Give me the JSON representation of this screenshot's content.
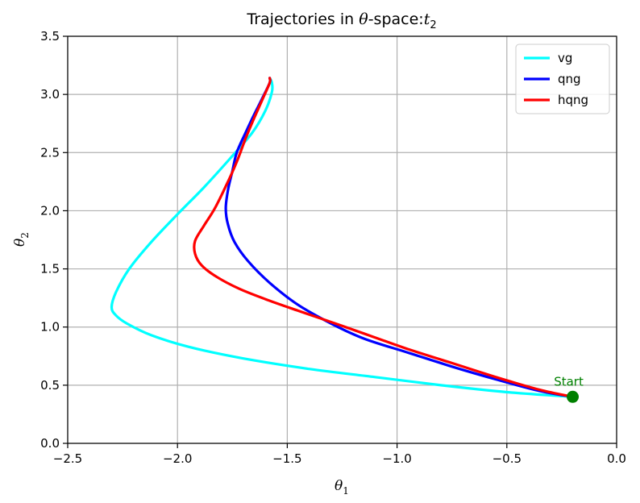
{
  "chart_data": {
    "type": "line",
    "title_prefix": "Trajectories in ",
    "title_theta": "θ",
    "title_middle": "-space:",
    "title_t": "t",
    "title_sub": "2",
    "xlabel_symbol": "θ",
    "xlabel_sub": "1",
    "ylabel_symbol": "θ",
    "ylabel_sub": "2",
    "xlim": [
      -2.5,
      0.0
    ],
    "ylim": [
      0.0,
      3.5
    ],
    "xticks": [
      -2.5,
      -2.0,
      -1.5,
      -1.0,
      -0.5,
      0.0
    ],
    "yticks": [
      0.0,
      0.5,
      1.0,
      1.5,
      2.0,
      2.5,
      3.0,
      3.5
    ],
    "xtick_labels": [
      "−2.5",
      "−2.0",
      "−1.5",
      "−1.0",
      "−0.5",
      "0.0"
    ],
    "ytick_labels": [
      "0.0",
      "0.5",
      "1.0",
      "1.5",
      "2.0",
      "2.5",
      "3.0",
      "3.5"
    ],
    "grid": true,
    "legend_position": "top-right",
    "series": [
      {
        "name": "vg",
        "color": "#00ffff",
        "points": [
          [
            -0.2,
            0.4
          ],
          [
            -0.5,
            0.44
          ],
          [
            -0.8,
            0.5
          ],
          [
            -1.1,
            0.57
          ],
          [
            -1.4,
            0.64
          ],
          [
            -1.7,
            0.73
          ],
          [
            -1.95,
            0.83
          ],
          [
            -2.12,
            0.93
          ],
          [
            -2.23,
            1.03
          ],
          [
            -2.28,
            1.1
          ],
          [
            -2.3,
            1.17
          ],
          [
            -2.28,
            1.3
          ],
          [
            -2.22,
            1.5
          ],
          [
            -2.12,
            1.73
          ],
          [
            -2.0,
            1.97
          ],
          [
            -1.88,
            2.2
          ],
          [
            -1.76,
            2.45
          ],
          [
            -1.66,
            2.67
          ],
          [
            -1.6,
            2.86
          ],
          [
            -1.57,
            3.02
          ],
          [
            -1.57,
            3.1
          ],
          [
            -1.58,
            3.14
          ]
        ]
      },
      {
        "name": "qng",
        "color": "#0000ff",
        "points": [
          [
            -0.2,
            0.4
          ],
          [
            -0.35,
            0.45
          ],
          [
            -0.55,
            0.55
          ],
          [
            -0.75,
            0.66
          ],
          [
            -0.95,
            0.78
          ],
          [
            -1.15,
            0.9
          ],
          [
            -1.3,
            1.03
          ],
          [
            -1.45,
            1.19
          ],
          [
            -1.58,
            1.38
          ],
          [
            -1.68,
            1.57
          ],
          [
            -1.74,
            1.73
          ],
          [
            -1.77,
            1.88
          ],
          [
            -1.78,
            2.02
          ],
          [
            -1.77,
            2.18
          ],
          [
            -1.75,
            2.34
          ],
          [
            -1.73,
            2.5
          ],
          [
            -1.69,
            2.67
          ],
          [
            -1.65,
            2.83
          ],
          [
            -1.61,
            2.98
          ],
          [
            -1.58,
            3.1
          ],
          [
            -1.58,
            3.14
          ]
        ]
      },
      {
        "name": "hqng",
        "color": "#ff0000",
        "points": [
          [
            -0.2,
            0.4
          ],
          [
            -0.35,
            0.46
          ],
          [
            -0.55,
            0.57
          ],
          [
            -0.75,
            0.69
          ],
          [
            -0.95,
            0.81
          ],
          [
            -1.1,
            0.91
          ],
          [
            -1.25,
            1.01
          ],
          [
            -1.45,
            1.14
          ],
          [
            -1.6,
            1.24
          ],
          [
            -1.72,
            1.33
          ],
          [
            -1.82,
            1.43
          ],
          [
            -1.89,
            1.53
          ],
          [
            -1.92,
            1.63
          ],
          [
            -1.92,
            1.74
          ],
          [
            -1.88,
            1.87
          ],
          [
            -1.83,
            2.02
          ],
          [
            -1.78,
            2.21
          ],
          [
            -1.73,
            2.42
          ],
          [
            -1.69,
            2.62
          ],
          [
            -1.65,
            2.8
          ],
          [
            -1.61,
            2.97
          ],
          [
            -1.58,
            3.1
          ],
          [
            -1.58,
            3.14
          ]
        ]
      }
    ],
    "marker": {
      "x": -0.2,
      "y": 0.4,
      "color": "#008000"
    },
    "annotation": {
      "text": "Start",
      "x": -0.2,
      "y": 0.4,
      "color": "#008000"
    }
  }
}
